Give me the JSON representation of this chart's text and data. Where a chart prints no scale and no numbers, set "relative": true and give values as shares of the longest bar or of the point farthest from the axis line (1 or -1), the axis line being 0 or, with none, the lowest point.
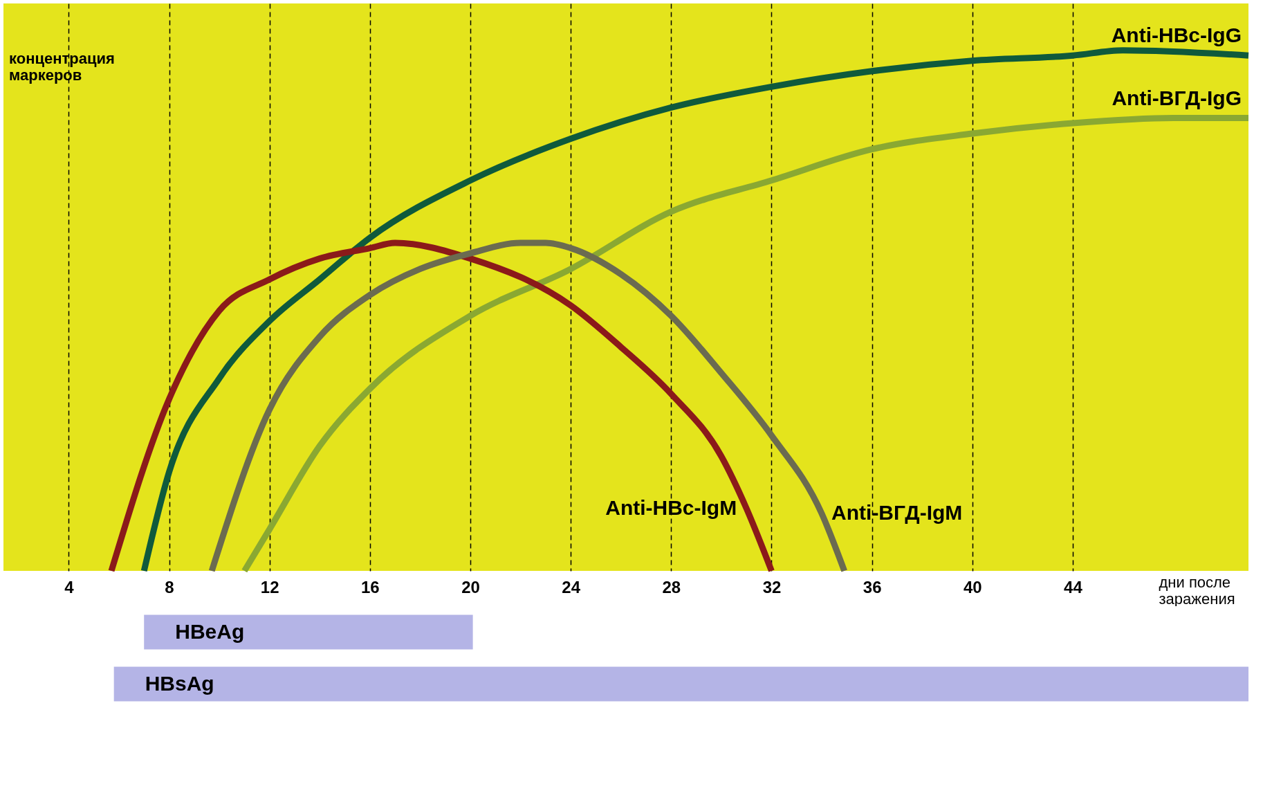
{
  "chart_data": [
    {
      "type": "line",
      "relative": true,
      "ylabel": "концентрация маркеров",
      "xlabel": "дни после заражения",
      "xlim": [
        1.4,
        51
      ],
      "xticks": [
        4,
        8,
        12,
        16,
        20,
        24,
        28,
        32,
        36,
        40,
        44
      ],
      "grid": "x",
      "series": [
        {
          "name": "Anti-HBc-IgG",
          "color": "#0f5a3c",
          "x": [
            7,
            8,
            10,
            12,
            14,
            16,
            20,
            24,
            28,
            32,
            36,
            40,
            44,
            46,
            51
          ],
          "values": [
            0,
            0.19,
            0.37,
            0.48,
            0.56,
            0.64,
            0.75,
            0.83,
            0.89,
            0.93,
            0.96,
            0.98,
            0.99,
            1.0,
            0.99
          ]
        },
        {
          "name": "Anti-ВГД-IgG",
          "color": "#8aa832",
          "x": [
            11,
            12,
            14,
            16,
            20,
            24,
            28,
            32,
            36,
            40,
            44,
            48,
            51
          ],
          "values": [
            0,
            0.08,
            0.24,
            0.35,
            0.49,
            0.58,
            0.69,
            0.75,
            0.81,
            0.84,
            0.86,
            0.87,
            0.87
          ]
        },
        {
          "name": "Anti-HBc-IgM",
          "color": "#8b1a1a",
          "x": [
            5.7,
            8,
            10,
            12,
            14,
            16,
            17,
            20,
            24,
            26,
            28,
            30,
            31,
            32
          ],
          "values": [
            0,
            0.33,
            0.5,
            0.56,
            0.6,
            0.62,
            0.63,
            0.6,
            0.51,
            0.43,
            0.34,
            0.22,
            0.12,
            0
          ]
        },
        {
          "name": "Anti-ВГД-IgM",
          "color": "#6b6b50",
          "x": [
            9.7,
            12,
            14,
            16,
            18,
            20,
            22,
            23,
            24,
            26,
            28,
            30,
            32,
            34,
            34.9
          ],
          "values": [
            0,
            0.31,
            0.45,
            0.53,
            0.58,
            0.61,
            0.63,
            0.63,
            0.62,
            0.57,
            0.49,
            0.38,
            0.26,
            0.11,
            0
          ]
        }
      ]
    },
    {
      "type": "bar",
      "orientation": "horizontal",
      "categories": [
        "HBeAg",
        "HBsAg"
      ],
      "base": [
        7,
        5.8
      ],
      "values": [
        13.1,
        45.2
      ],
      "colors": [
        "#b4b4e6",
        "#b4b4e6"
      ],
      "xlim": [
        1.4,
        51
      ],
      "tick_labels": false
    }
  ]
}
